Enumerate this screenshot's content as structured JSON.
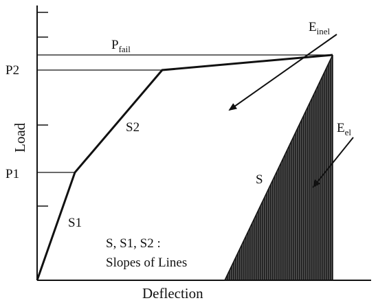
{
  "axes": {
    "x_label": "Deflection",
    "y_label": "Load"
  },
  "labels": {
    "p1": "P1",
    "p2": "P2",
    "p_fail_main": "P",
    "p_fail_sub": "fail",
    "e_inel_main": "E",
    "e_inel_sub": "inel",
    "e_el_main": "E",
    "e_el_sub": "el",
    "s": "S",
    "s1": "S1",
    "s2": "S2",
    "note_line1": "S, S1, S2 :",
    "note_line2": "Slopes of Lines"
  },
  "colors": {
    "line": "#111111",
    "hatch": "#1c1c1c",
    "background": "#ffffff"
  }
}
